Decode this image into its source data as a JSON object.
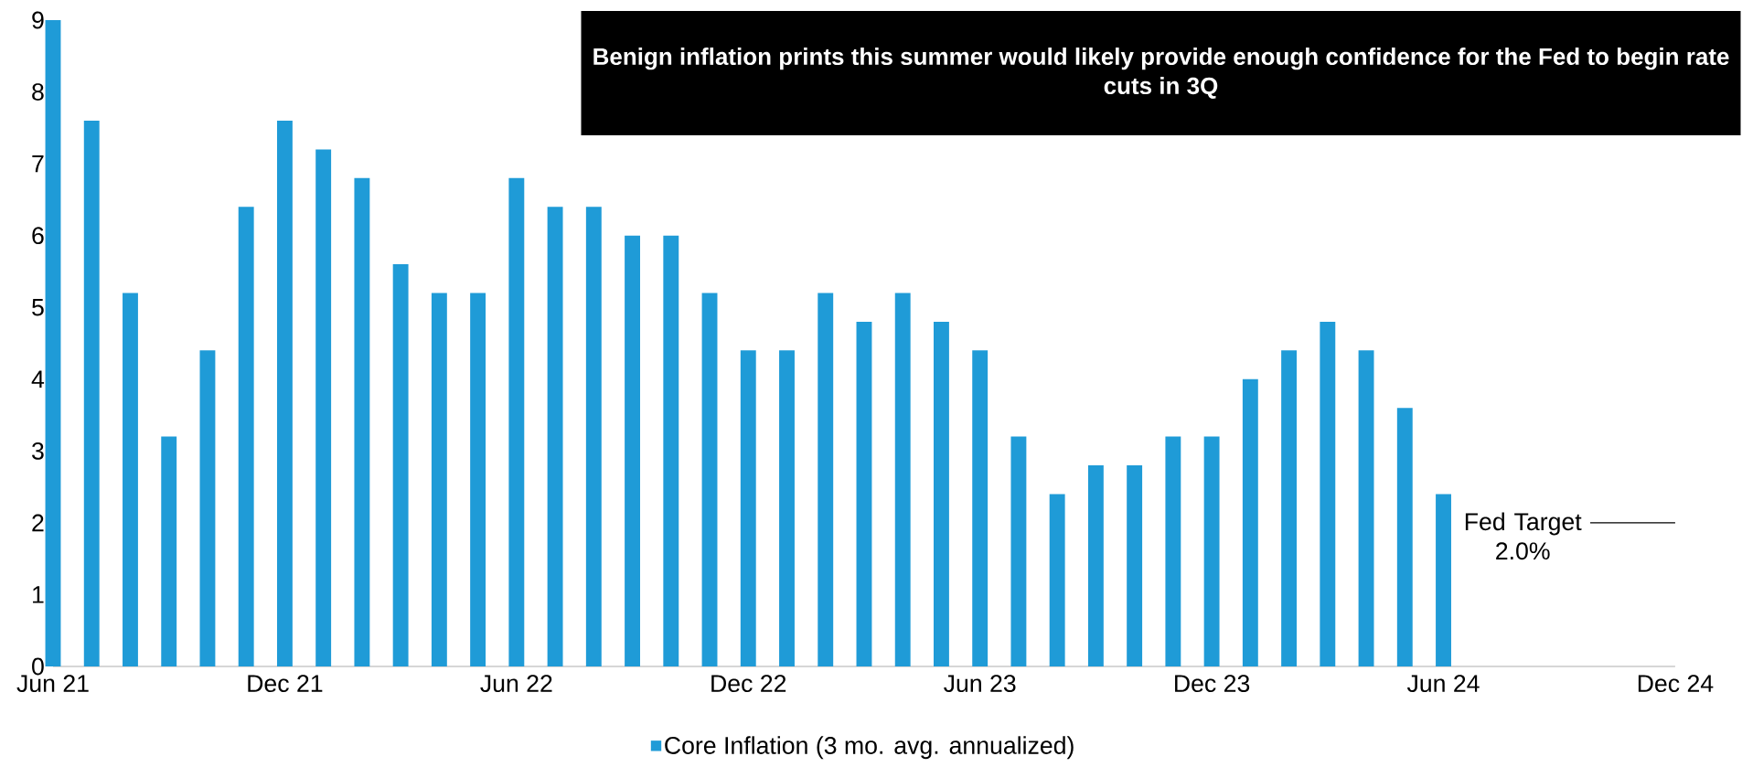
{
  "chart_data": {
    "type": "bar",
    "x": [
      "2021-06",
      "2021-07",
      "2021-08",
      "2021-09",
      "2021-10",
      "2021-11",
      "2021-12",
      "2022-01",
      "2022-02",
      "2022-03",
      "2022-04",
      "2022-05",
      "2022-06",
      "2022-07",
      "2022-08",
      "2022-09",
      "2022-10",
      "2022-11",
      "2022-12",
      "2023-01",
      "2023-02",
      "2023-03",
      "2023-04",
      "2023-05",
      "2023-06",
      "2023-07",
      "2023-08",
      "2023-09",
      "2023-10",
      "2023-11",
      "2023-12",
      "2024-01",
      "2024-02",
      "2024-03",
      "2024-04",
      "2024-05",
      "2024-06"
    ],
    "series": [
      {
        "name": "Core Inflation (3 mo. avg. annualized)",
        "color": "#1f9bd7",
        "values": [
          9.0,
          7.6,
          5.2,
          3.2,
          4.4,
          6.4,
          7.6,
          7.2,
          6.8,
          5.6,
          5.2,
          5.2,
          6.8,
          6.4,
          6.4,
          6.0,
          6.0,
          5.2,
          4.4,
          4.4,
          5.2,
          4.8,
          5.2,
          4.8,
          4.4,
          3.2,
          2.4,
          2.8,
          2.8,
          3.2,
          3.2,
          4.0,
          4.4,
          4.8,
          4.4,
          3.6,
          2.4
        ]
      }
    ],
    "xlim": [
      "2021-06",
      "2024-12"
    ],
    "xticks": [
      {
        "value": "2021-06",
        "label": "Jun 21"
      },
      {
        "value": "2021-12",
        "label": "Dec 21"
      },
      {
        "value": "2022-06",
        "label": "Jun 22"
      },
      {
        "value": "2022-12",
        "label": "Dec 22"
      },
      {
        "value": "2023-06",
        "label": "Jun 23"
      },
      {
        "value": "2023-12",
        "label": "Dec 23"
      },
      {
        "value": "2024-06",
        "label": "Jun 24"
      },
      {
        "value": "2024-12",
        "label": "Dec 24"
      }
    ],
    "ylim": [
      0,
      9
    ],
    "yticks": [
      0,
      1,
      2,
      3,
      4,
      5,
      6,
      7,
      8,
      9
    ],
    "ref_lines": [
      {
        "axis": "y",
        "value": 2.0,
        "label": "Fed Target 2.0%"
      }
    ],
    "annotations": [
      "Benign inflation prints this summer would likely provide enough confidence for the Fed to begin rate cuts in 3Q"
    ],
    "legend": "bottom",
    "grid": false
  }
}
